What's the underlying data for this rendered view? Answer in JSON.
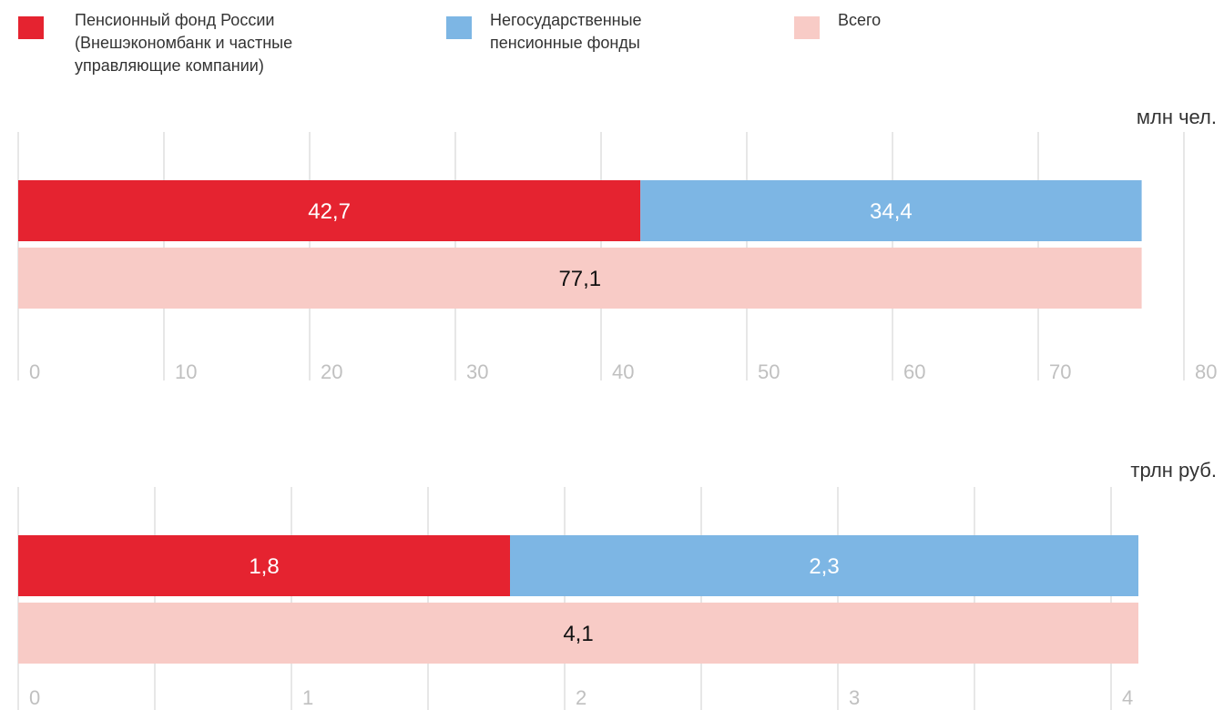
{
  "chart_data": [
    {
      "type": "bar",
      "orientation": "horizontal",
      "stacked": true,
      "unit": "млн чел.",
      "series": [
        {
          "name": "Пенсионный фонд России (Внешэкономбанк и частные управляющие компании)",
          "color": "#e52330",
          "values": [
            42.7,
            null
          ],
          "value_labels": [
            "42,7",
            null
          ]
        },
        {
          "name": "Негосударственные пенсионные фонды",
          "color": "#7db6e4",
          "values": [
            34.4,
            null
          ],
          "value_labels": [
            "34,4",
            null
          ]
        },
        {
          "name": "Всего",
          "color": "#f8cbc6",
          "values": [
            null,
            77.1
          ],
          "value_labels": [
            null,
            "77,1"
          ]
        }
      ],
      "xlim": [
        0,
        80
      ],
      "xticks": [
        0,
        10,
        20,
        30,
        40,
        50,
        60,
        70,
        80
      ],
      "grid": true
    },
    {
      "type": "bar",
      "orientation": "horizontal",
      "stacked": true,
      "unit": "трлн руб.",
      "series": [
        {
          "color": "#e52330",
          "values": [
            1.8,
            null
          ],
          "value_labels": [
            "1,8",
            null
          ]
        },
        {
          "color": "#7db6e4",
          "values": [
            2.3,
            null
          ],
          "value_labels": [
            "2,3",
            null
          ]
        },
        {
          "color": "#f8cbc6",
          "values": [
            null,
            4.1
          ],
          "value_labels": [
            null,
            "4,1"
          ]
        }
      ],
      "xlim": [
        0,
        4.1
      ],
      "xticks": [
        0,
        1,
        2,
        3,
        4
      ],
      "minor_xticks": [
        0.5,
        1.5,
        2.5,
        3.5
      ],
      "grid": true
    }
  ]
}
